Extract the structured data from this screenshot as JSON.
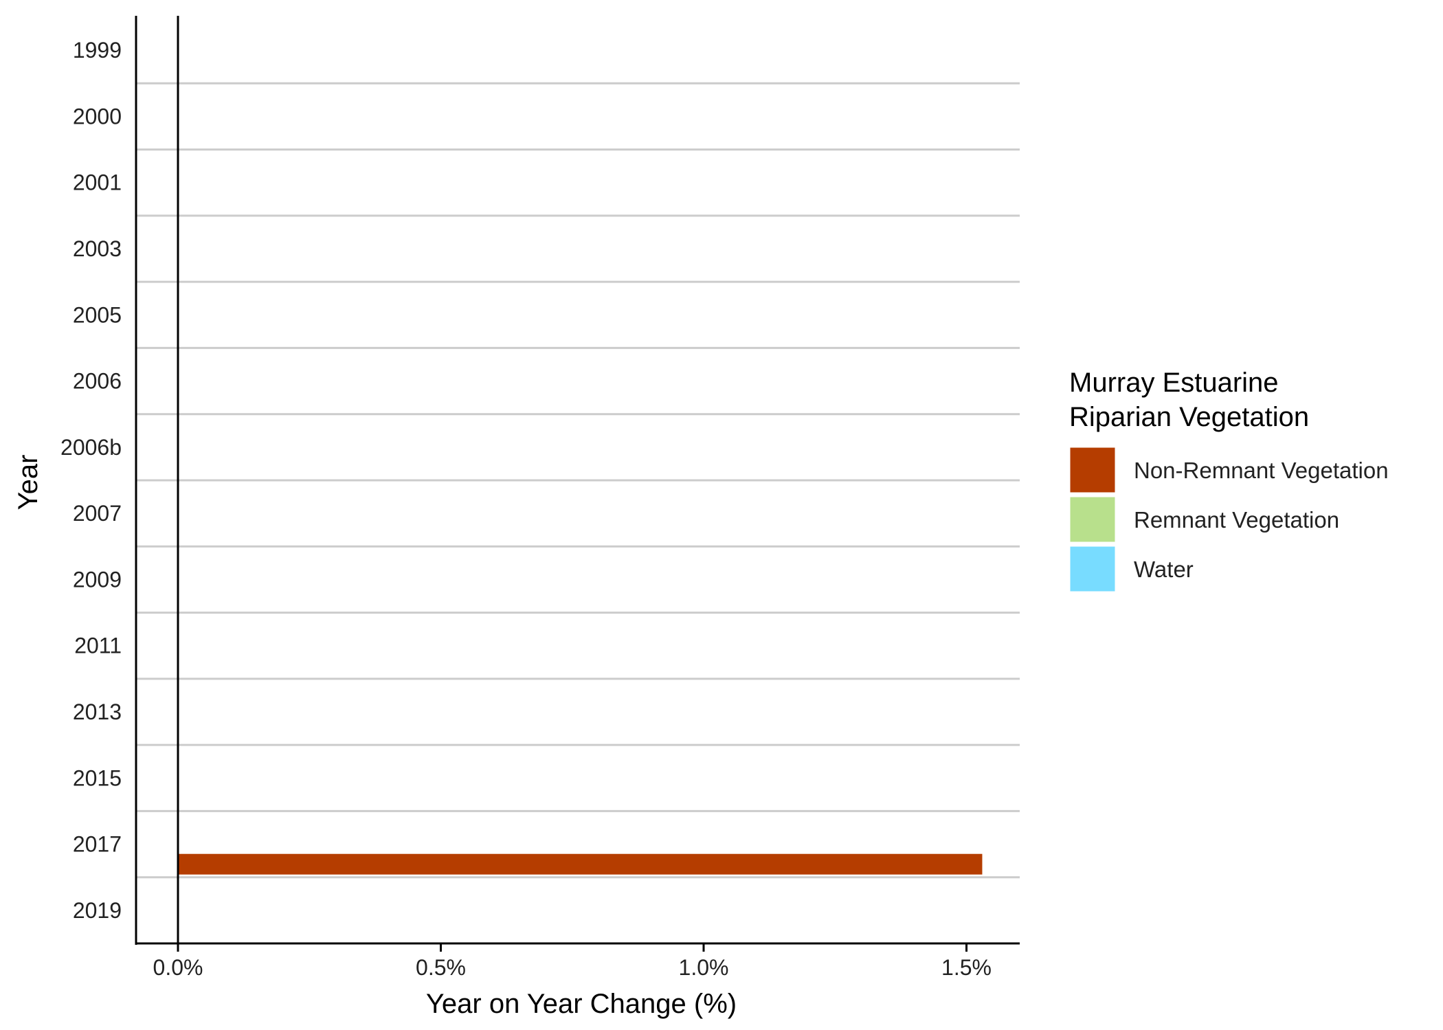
{
  "chart_data": {
    "type": "bar",
    "orientation": "horizontal",
    "xlabel": "Year on Year Change (%)",
    "ylabel": "Year",
    "xlim": [
      -0.08,
      1.6
    ],
    "xticks": [
      0.0,
      0.5,
      1.0,
      1.5
    ],
    "xtick_labels": [
      "0.0%",
      "0.5%",
      "1.0%",
      "1.5%"
    ],
    "categories": [
      "1999",
      "2000",
      "2001",
      "2003",
      "2005",
      "2006",
      "2006b",
      "2007",
      "2009",
      "2011",
      "2013",
      "2015",
      "2017",
      "2019"
    ],
    "legend": {
      "title_lines": [
        "Murray Estuarine",
        "Riparian Vegetation"
      ],
      "placement": "right"
    },
    "series": [
      {
        "name": "Non-Remnant Vegetation",
        "color": "#B53D00",
        "values": [
          null,
          null,
          null,
          null,
          null,
          null,
          null,
          null,
          null,
          null,
          null,
          null,
          1.53,
          null
        ]
      },
      {
        "name": "Remnant Vegetation",
        "color": "#B8E08C",
        "values": [
          null,
          null,
          null,
          null,
          null,
          null,
          null,
          null,
          null,
          null,
          null,
          null,
          null,
          null
        ]
      },
      {
        "name": "Water",
        "color": "#78DCFF",
        "values": [
          null,
          null,
          null,
          null,
          null,
          null,
          null,
          null,
          null,
          null,
          null,
          null,
          null,
          null
        ]
      }
    ],
    "grid": "horizontal separators between year bands"
  }
}
